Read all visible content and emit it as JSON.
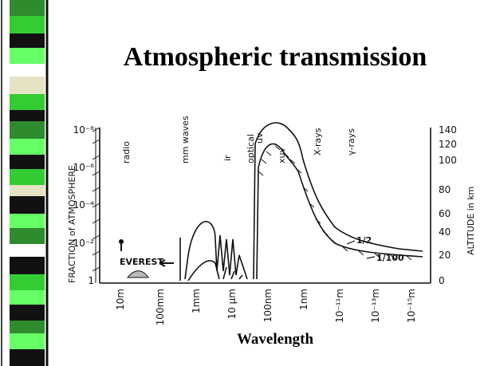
{
  "slide": {
    "title": "Atmospheric transmission",
    "caption": "Wavelength",
    "figure": {
      "left_axis_title": "FRACTION of ATMOSPHERE",
      "right_axis_title": "ALTITUDE in km",
      "left_ticks": [
        "10⁻⁸",
        "10⁻⁶",
        "10⁻⁴",
        "10⁻²",
        "1"
      ],
      "right_ticks": [
        "140",
        "120",
        "100",
        "80",
        "60",
        "40",
        "20",
        "0"
      ],
      "x_ticks": [
        "10m",
        "100mm",
        "1mm",
        "10 μm",
        "100nm",
        "1nm",
        "10⁻¹¹m",
        "10⁻¹³m",
        "10⁻¹⁵m"
      ],
      "bands": [
        "radio",
        "mm waves",
        "ir",
        "optical",
        "uv",
        "xuv",
        "X-rays",
        "γ-rays"
      ],
      "annotations": [
        "EVEREST",
        "1/2",
        "1/100"
      ]
    }
  }
}
